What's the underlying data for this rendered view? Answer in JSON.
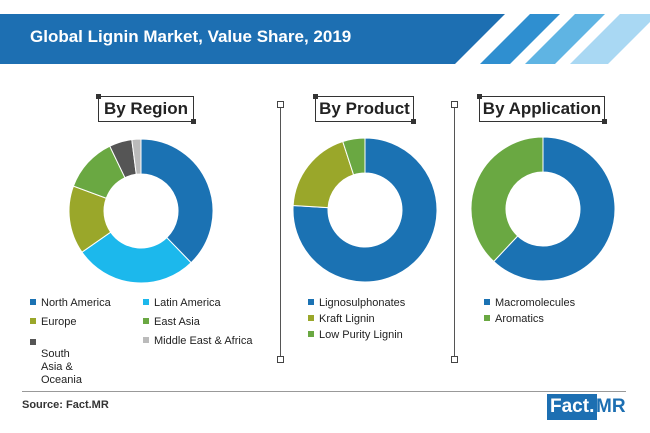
{
  "header": {
    "title": "Global Lignin Market, Value Share, 2019"
  },
  "colors": {
    "north_america": "#1b72b3",
    "latin_america": "#1cb8ec",
    "europe": "#9aa72a",
    "east_asia": "#6aa842",
    "south_asia_oceania": "#555555",
    "middle_east_africa": "#bbbbbb",
    "lignosulphonates": "#1b72b3",
    "kraft_lignin": "#9aa72a",
    "low_purity_lignin": "#6aa842",
    "macromolecules": "#1b72b3",
    "aromatics": "#6aa842",
    "banner": "#1d6fb2"
  },
  "chart_data": [
    {
      "type": "pie",
      "title": "By Region",
      "labels": [
        "North America",
        "Latin America",
        "Europe",
        "East Asia",
        "South Asia & Oceania",
        "Middle East & Africa"
      ],
      "values": [
        37,
        27,
        15,
        12,
        5,
        2
      ],
      "colors": [
        "#1b72b3",
        "#1cb8ec",
        "#9aa72a",
        "#6aa842",
        "#555555",
        "#bbbbbb"
      ],
      "legend_position": "bottom"
    },
    {
      "type": "pie",
      "title": "By Product",
      "labels": [
        "Lignosulphonates",
        "Kraft Lignin",
        "Low Purity Lignin"
      ],
      "values": [
        76,
        19,
        5
      ],
      "colors": [
        "#1b72b3",
        "#9aa72a",
        "#6aa842"
      ],
      "legend_position": "bottom"
    },
    {
      "type": "pie",
      "title": "By Application",
      "labels": [
        "Macromolecules",
        "Aromatics"
      ],
      "values": [
        62,
        38
      ],
      "colors": [
        "#1b72b3",
        "#6aa842"
      ],
      "legend_position": "bottom"
    }
  ],
  "legends": {
    "region": [
      {
        "label": "North America",
        "color": "#1b72b3"
      },
      {
        "label": "Latin America",
        "color": "#1cb8ec"
      },
      {
        "label": "Europe",
        "color": "#9aa72a"
      },
      {
        "label": "East Asia",
        "color": "#6aa842"
      },
      {
        "label": "South Asia &\nOceania",
        "color": "#555555"
      },
      {
        "label": "Middle East & Africa",
        "color": "#bbbbbb"
      }
    ],
    "product": [
      {
        "label": "Lignosulphonates",
        "color": "#1b72b3"
      },
      {
        "label": "Kraft Lignin",
        "color": "#9aa72a"
      },
      {
        "label": "Low Purity Lignin",
        "color": "#6aa842"
      }
    ],
    "application": [
      {
        "label": "Macromolecules",
        "color": "#1b72b3"
      },
      {
        "label": "Aromatics",
        "color": "#6aa842"
      }
    ]
  },
  "footer": {
    "source": "Source: Fact.MR",
    "brand_part1": "Fact.",
    "brand_part2": "MR"
  }
}
